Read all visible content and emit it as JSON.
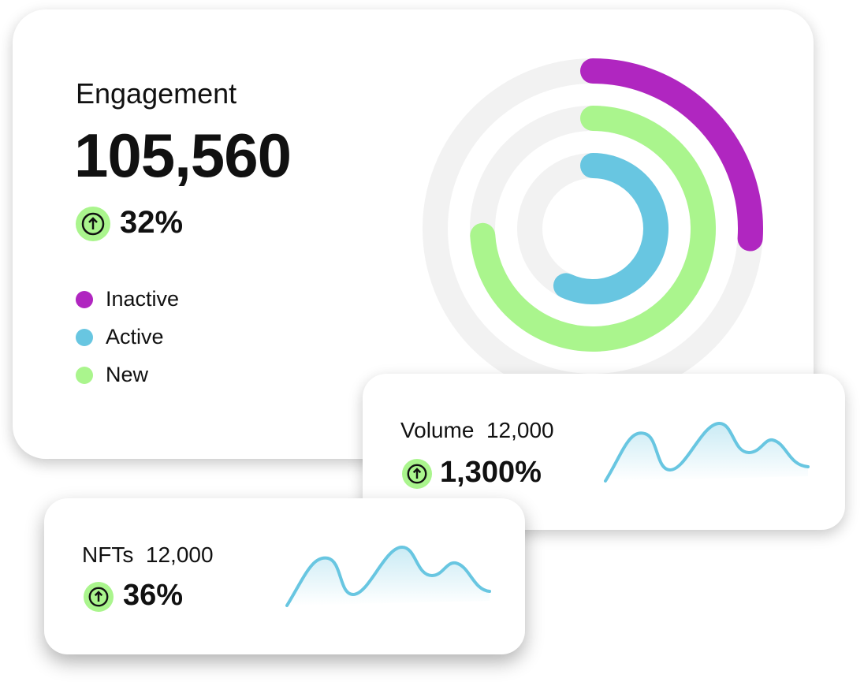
{
  "engagement": {
    "title": "Engagement",
    "value": "105,560",
    "change": "32%",
    "series": [
      {
        "name": "Inactive",
        "color": "#b026c0",
        "value": 26
      },
      {
        "name": "Active",
        "color": "#68c6e1",
        "value": 57
      },
      {
        "name": "New",
        "color": "#aaf58d",
        "value": 74
      }
    ]
  },
  "volume": {
    "label": "Volume",
    "value": "12,000",
    "change": "1,300%"
  },
  "nfts": {
    "label": "NFTs",
    "value": "12,000",
    "change": "36%"
  }
}
